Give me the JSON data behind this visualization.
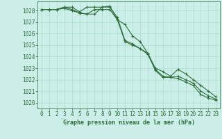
{
  "bg_color": "#cceee8",
  "grid_color": "#aaddcc",
  "line_color": "#2d6e3a",
  "title": "Graphe pression niveau de la mer (hPa)",
  "xlim": [
    -0.5,
    23.5
  ],
  "ylim": [
    1019.5,
    1028.8
  ],
  "yticks": [
    1020,
    1021,
    1022,
    1023,
    1024,
    1025,
    1026,
    1027,
    1028
  ],
  "xticks": [
    0,
    1,
    2,
    3,
    4,
    5,
    6,
    7,
    8,
    9,
    10,
    11,
    12,
    13,
    14,
    15,
    16,
    17,
    18,
    19,
    20,
    21,
    22,
    23
  ],
  "series": [
    [
      1028.1,
      1028.1,
      1028.1,
      1028.2,
      1028.0,
      1027.8,
      1027.7,
      1028.1,
      1028.1,
      1028.1,
      1027.2,
      1025.3,
      1025.0,
      1024.7,
      1024.3,
      1022.8,
      1022.2,
      1022.2,
      1022.1,
      1021.8,
      1021.5,
      1020.7,
      1020.4,
      1020.2
    ],
    [
      1028.1,
      1028.1,
      1028.1,
      1028.3,
      1028.1,
      1027.8,
      1027.7,
      1027.7,
      1028.3,
      1028.3,
      1027.4,
      1025.4,
      1025.1,
      1024.7,
      1024.2,
      1022.9,
      1022.3,
      1022.2,
      1022.3,
      1022.0,
      1021.7,
      1021.0,
      1020.6,
      1020.3
    ],
    [
      1028.1,
      1028.1,
      1028.1,
      1028.3,
      1028.3,
      1027.9,
      1028.3,
      1028.3,
      1028.3,
      1028.4,
      1027.2,
      1026.8,
      1025.8,
      1025.3,
      1024.3,
      1023.0,
      1022.7,
      1022.3,
      1022.9,
      1022.5,
      1022.0,
      1021.5,
      1021.0,
      1020.5
    ]
  ]
}
